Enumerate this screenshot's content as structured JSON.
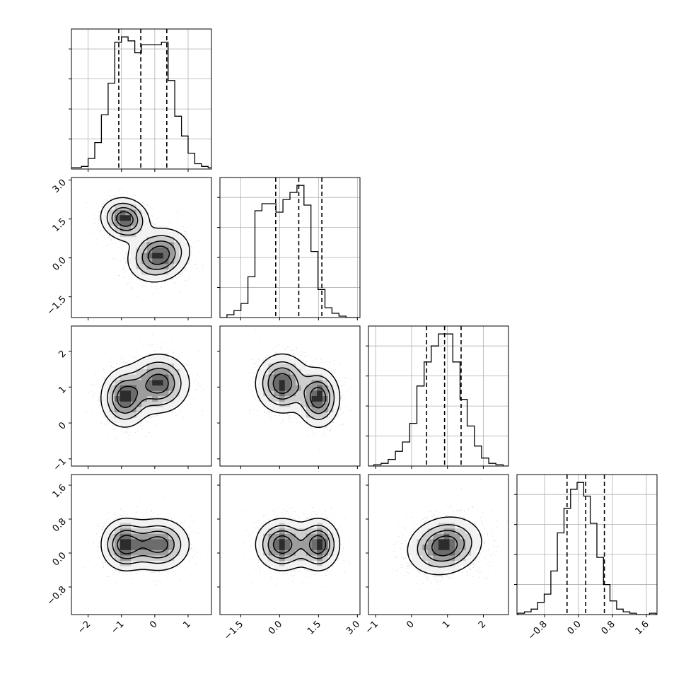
{
  "chart_data": {
    "type": "corner",
    "n_params": 4,
    "grid": true,
    "title": "",
    "params": [
      {
        "range": [
          -2.5,
          1.7
        ],
        "ticks": [
          -2,
          -1,
          0,
          1
        ],
        "tick_labels": [
          "−2",
          "−1",
          "0",
          "1"
        ],
        "quantiles": [
          -1.08,
          -0.42,
          0.36
        ],
        "hist": {
          "bin_width": 0.2,
          "counts": [
            0.01,
            0.01,
            0.02,
            0.08,
            0.2,
            0.41,
            0.65,
            0.96,
            1.0,
            0.97,
            0.88,
            0.94,
            0.94,
            0.94,
            0.96,
            0.67,
            0.4,
            0.25,
            0.12,
            0.04,
            0.02,
            0.01
          ]
        }
      },
      {
        "range": [
          -2.3,
          3.1
        ],
        "ticks": [
          -1.5,
          0.0,
          1.5,
          3.0
        ],
        "tick_labels": [
          "−1.5",
          "0.0",
          "1.5",
          "3.0"
        ],
        "quantiles": [
          -0.15,
          0.74,
          1.63
        ],
        "hist": {
          "bin_width": 0.27,
          "counts": [
            0.0,
            0.02,
            0.05,
            0.1,
            0.29,
            0.76,
            0.81,
            0.81,
            0.75,
            0.84,
            0.89,
            0.94,
            0.8,
            0.47,
            0.2,
            0.07,
            0.03,
            0.01,
            0.0,
            0.0
          ]
        }
      },
      {
        "range": [
          -1.2,
          2.7
        ],
        "ticks": [
          -1,
          0,
          1,
          2
        ],
        "tick_labels": [
          "−1",
          "0",
          "1",
          "2"
        ],
        "quantiles": [
          0.42,
          0.92,
          1.38
        ],
        "hist": {
          "bin_width": 0.2,
          "counts": [
            0.0,
            0.01,
            0.02,
            0.05,
            0.11,
            0.18,
            0.32,
            0.6,
            0.78,
            0.9,
            0.99,
            0.99,
            0.78,
            0.5,
            0.3,
            0.15,
            0.06,
            0.02,
            0.01,
            0.0
          ]
        }
      },
      {
        "range": [
          -1.45,
          1.85
        ],
        "ticks": [
          -0.8,
          0.0,
          0.8,
          1.6
        ],
        "tick_labels": [
          "−0.8",
          "0.0",
          "0.8",
          "1.6"
        ],
        "quantiles": [
          -0.27,
          0.17,
          0.61
        ],
        "hist": {
          "bin_width": 0.155,
          "counts": [
            0.01,
            0.02,
            0.04,
            0.09,
            0.15,
            0.32,
            0.6,
            0.78,
            0.92,
            0.97,
            0.87,
            0.67,
            0.42,
            0.22,
            0.1,
            0.04,
            0.02,
            0.01,
            0.0,
            0.0,
            0.01
          ]
        }
      }
    ],
    "pairs": [
      {
        "row": 1,
        "col": 0,
        "modes": [
          {
            "x": -0.9,
            "y": 1.5,
            "sx": 0.35,
            "sy": 0.4,
            "r": -0.1,
            "w": 1
          },
          {
            "x": 0.12,
            "y": 0.1,
            "sx": 0.45,
            "sy": 0.5,
            "r": 0.15,
            "w": 1
          }
        ]
      },
      {
        "row": 2,
        "col": 0,
        "modes": [
          {
            "x": -0.9,
            "y": 0.7,
            "sx": 0.35,
            "sy": 0.4,
            "r": 0,
            "w": 1
          },
          {
            "x": 0.12,
            "y": 1.1,
            "sx": 0.45,
            "sy": 0.4,
            "r": 0,
            "w": 1
          }
        ]
      },
      {
        "row": 3,
        "col": 0,
        "modes": [
          {
            "x": -0.9,
            "y": 0.2,
            "sx": 0.35,
            "sy": 0.3,
            "r": 0,
            "w": 1
          },
          {
            "x": 0.12,
            "y": 0.2,
            "sx": 0.45,
            "sy": 0.3,
            "r": 0,
            "w": 1
          }
        ]
      },
      {
        "row": 2,
        "col": 1,
        "modes": [
          {
            "x": 0.1,
            "y": 1.1,
            "sx": 0.5,
            "sy": 0.4,
            "r": 0,
            "w": 1
          },
          {
            "x": 1.5,
            "y": 0.7,
            "sx": 0.4,
            "sy": 0.4,
            "r": 0,
            "w": 1
          }
        ]
      },
      {
        "row": 3,
        "col": 1,
        "modes": [
          {
            "x": 0.1,
            "y": 0.2,
            "sx": 0.5,
            "sy": 0.3,
            "r": 0,
            "w": 1
          },
          {
            "x": 1.5,
            "y": 0.2,
            "sx": 0.4,
            "sy": 0.3,
            "r": 0,
            "w": 1
          }
        ]
      },
      {
        "row": 3,
        "col": 2,
        "modes": [
          {
            "x": 0.92,
            "y": 0.17,
            "sx": 0.5,
            "sy": 0.33,
            "r": 0.15,
            "w": 1
          }
        ]
      }
    ]
  }
}
